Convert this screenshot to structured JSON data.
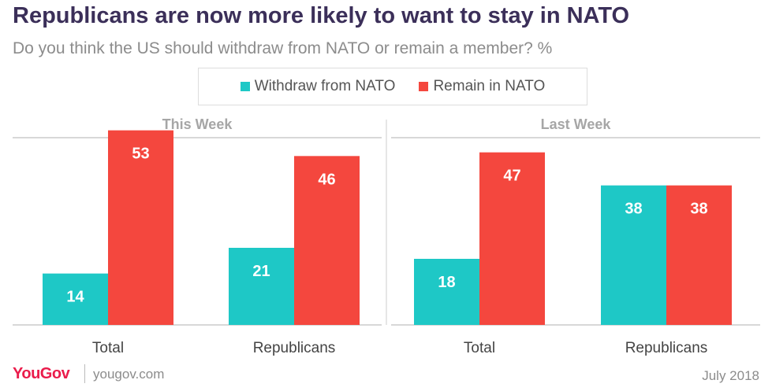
{
  "title": "Republicans are now more likely to want to stay in NATO",
  "subtitle": "Do you think the US should withdraw from NATO or remain a member? %",
  "footer": {
    "brand": "YouGov",
    "url": "yougov.com",
    "date": "July 2018"
  },
  "colors": {
    "withdraw": "#1ec8c6",
    "remain": "#f4473e",
    "axis": "#cccccc",
    "panel_title": "#a6a6a6",
    "category": "#444444"
  },
  "chart_data": {
    "type": "bar",
    "legend": [
      {
        "name": "Withdraw from NATO",
        "color": "#1ec8c6"
      },
      {
        "name": "Remain in NATO",
        "color": "#f4473e"
      }
    ],
    "ylim": [
      0,
      60
    ],
    "panels": [
      {
        "title": "This Week",
        "categories": [
          "Total",
          "Republicans"
        ],
        "series": [
          {
            "name": "Withdraw from NATO",
            "values": [
              14,
              21
            ]
          },
          {
            "name": "Remain in NATO",
            "values": [
              53,
              46
            ]
          }
        ]
      },
      {
        "title": "Last Week",
        "categories": [
          "Total",
          "Republicans"
        ],
        "series": [
          {
            "name": "Withdraw from NATO",
            "values": [
              18,
              38
            ]
          },
          {
            "name": "Remain in NATO",
            "values": [
              47,
              38
            ]
          }
        ]
      }
    ]
  }
}
